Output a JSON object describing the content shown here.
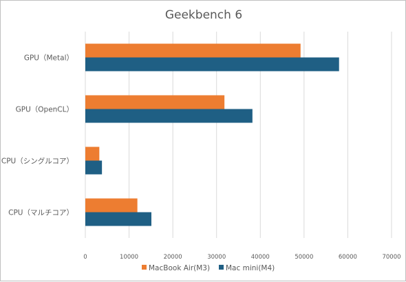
{
  "chart_data": {
    "type": "bar",
    "orientation": "horizontal",
    "title": "Geekbench 6",
    "categories": [
      "GPU（Metal）",
      "GPU（OpenCL）",
      "CPU（シングルコア）",
      "CPU（マルチコア）"
    ],
    "series": [
      {
        "name": "MacBook Air(M3)",
        "color": "#ed7d31",
        "values": [
          49200,
          31800,
          3200,
          11900
        ]
      },
      {
        "name": "Mac mini(M4)",
        "color": "#1f5f84",
        "values": [
          58000,
          38200,
          3800,
          15100
        ]
      }
    ],
    "xlim": [
      0,
      70000
    ],
    "xticks": [
      0,
      10000,
      20000,
      30000,
      40000,
      50000,
      60000,
      70000
    ],
    "grid": true,
    "legend": "bottom"
  }
}
